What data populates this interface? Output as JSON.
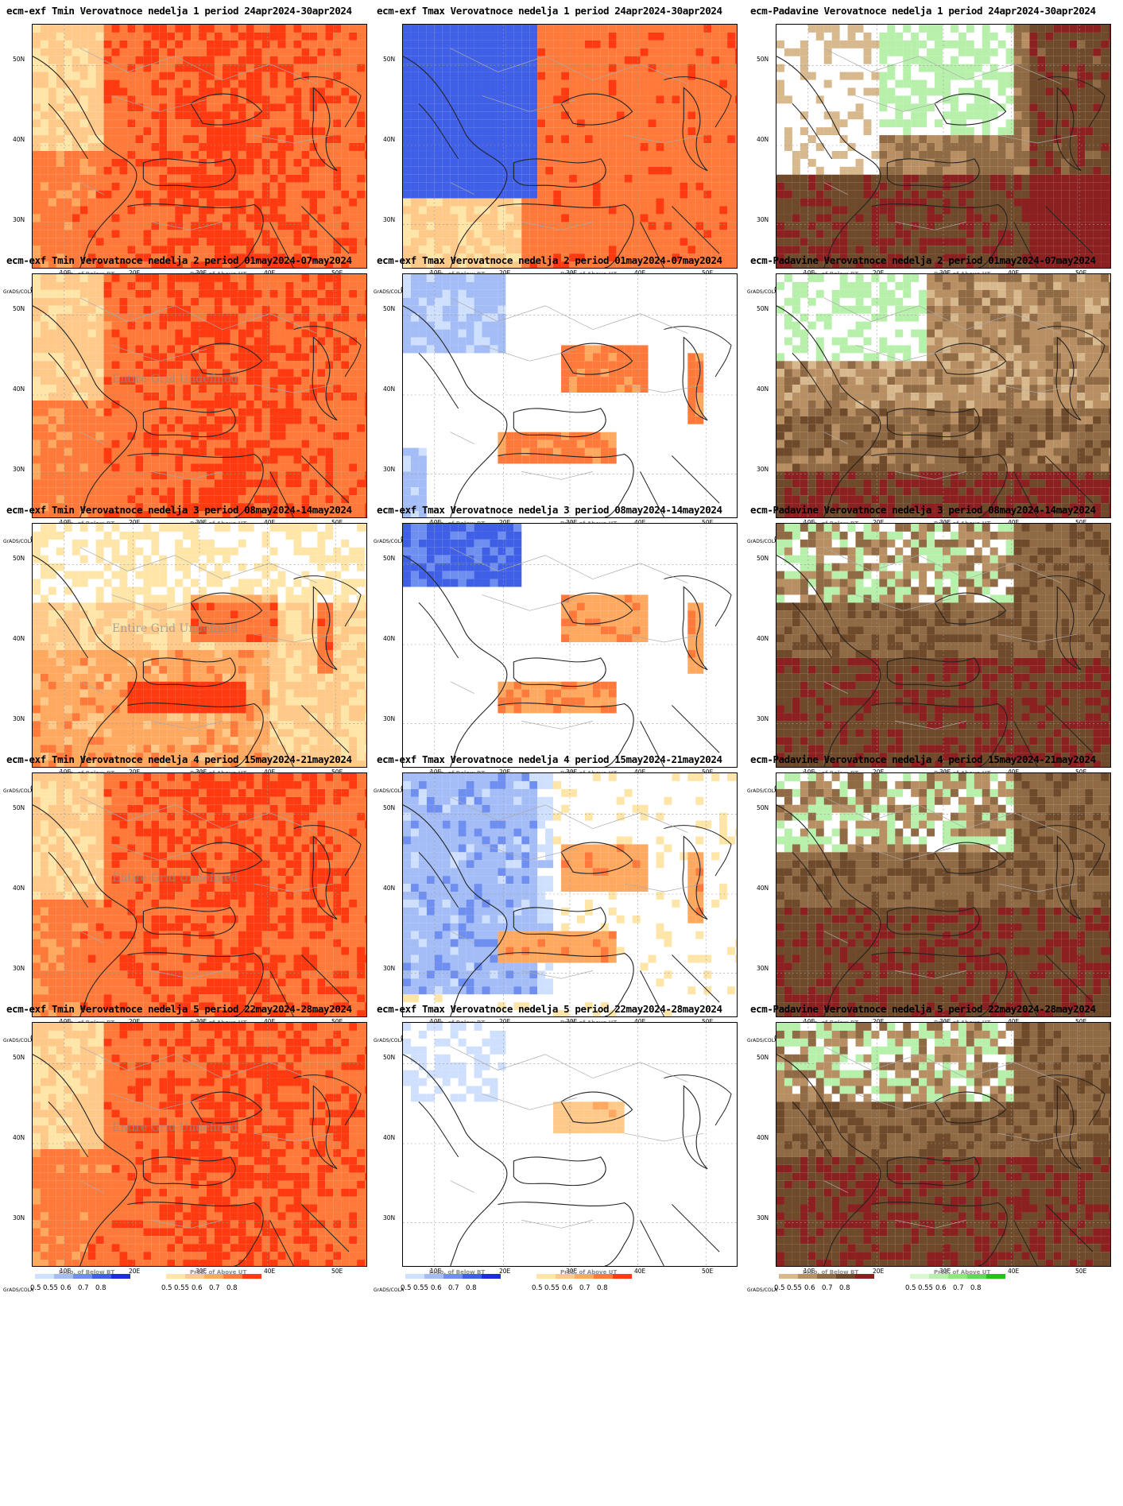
{
  "figure": {
    "y_ticks": [
      "50N",
      "40N",
      "30N"
    ],
    "x_ticks": [
      "10E",
      "20E",
      "30E",
      "40E",
      "50E"
    ],
    "grads_label": "GrADS/COLA",
    "colorbar_values": [
      "0.5",
      "0.55",
      "0.6",
      "0.7",
      "0.8"
    ],
    "colors": {
      "temp_below": [
        "#cfe0ff",
        "#a4bdf7",
        "#6f8ff0",
        "#3f5fe6",
        "#1a2ee0"
      ],
      "temp_above": [
        "#ffe6a8",
        "#ffc98a",
        "#ffa860",
        "#ff7a3a",
        "#ff3a10"
      ],
      "precip_below": [
        "#d8b98e",
        "#b88f63",
        "#8f6a45",
        "#6e4a2a",
        "#8b2020"
      ],
      "precip_above": [
        "#d6f7cf",
        "#b7f0aa",
        "#8fe87e",
        "#5fdc4f",
        "#22c316"
      ]
    }
  },
  "panels": [
    {
      "title": "ecm-exf Tmin Verovatnoce nedelja 1 period 24apr2024-30apr2024",
      "kind": "temp",
      "below_label": "Prob. of Below BT",
      "above_label": "Prob. of Above UT",
      "regime": "hot",
      "overlay": ""
    },
    {
      "title": "ecm-exf Tmax Verovatnoce nedelja 1 period 24apr2024-30apr2024",
      "kind": "temp",
      "below_label": "Prob. of Below BT",
      "above_label": "Prob. of Above UT",
      "regime": "split-cold",
      "overlay": ""
    },
    {
      "title": "ecm-Padavine Verovatnoce nedelja 1 period 24apr2024-30apr2024",
      "kind": "precip",
      "below_label": "Prob. of Below BT",
      "above_label": "Prob. of Above UT",
      "regime": "dry",
      "overlay": ""
    },
    {
      "title": "ecm-exf Tmin Verovatnoce nedelja 2 period 01may2024-07may2024",
      "kind": "temp",
      "below_label": "Prob. of Below BT",
      "above_label": "Prob. of Above UT",
      "regime": "hot",
      "overlay": "Entire Grid Undefined"
    },
    {
      "title": "ecm-exf Tmax Verovatnoce nedelja 2 period 01may2024-07may2024",
      "kind": "temp",
      "below_label": "Prob. of Below BT",
      "above_label": "Prob. of Above UT",
      "regime": "sea-warm",
      "overlay": ""
    },
    {
      "title": "ecm-Padavine Verovatnoce nedelja 2 period 01may2024-07may2024",
      "kind": "precip",
      "below_label": "Prob. of Below BT",
      "above_label": "Prob. of Above UT",
      "regime": "mixed",
      "overlay": ""
    },
    {
      "title": "ecm-exf Tmin Verovatnoce nedelja 3 period 08may2024-14may2024",
      "kind": "temp",
      "below_label": "Prob. of Below BT",
      "above_label": "Prob. of Above UT",
      "regime": "warm",
      "overlay": "Entire Grid Undefined"
    },
    {
      "title": "ecm-exf Tmax Verovatnoce nedelja 3 period 08may2024-14may2024",
      "kind": "temp",
      "below_label": "Prob. of Below BT",
      "above_label": "Prob. of Above UT",
      "regime": "sea-warm-nw-cold",
      "overlay": ""
    },
    {
      "title": "ecm-Padavine Verovatnoce nedelja 3 period 08may2024-14may2024",
      "kind": "precip",
      "below_label": "Prob. of Below BT",
      "above_label": "Prob. of Above UT",
      "regime": "dry-south",
      "overlay": ""
    },
    {
      "title": "ecm-exf Tmin Verovatnoce nedelja 4 period 15may2024-21may2024",
      "kind": "temp",
      "below_label": "Prob. of Below BT",
      "above_label": "Prob. of Above UT",
      "regime": "hot",
      "overlay": "Entire Grid Undefined"
    },
    {
      "title": "ecm-exf Tmax Verovatnoce nedelja 4 period 15may2024-21may2024",
      "kind": "temp",
      "below_label": "Prob. of Below BT",
      "above_label": "Prob. of Above UT",
      "regime": "west-cold",
      "overlay": ""
    },
    {
      "title": "ecm-Padavine Verovatnoce nedelja 4 period 15may2024-21may2024",
      "kind": "precip",
      "below_label": "Prob. of Below BT",
      "above_label": "Prob. of Above UT",
      "regime": "dry-south",
      "overlay": ""
    },
    {
      "title": "ecm-exf Tmin Verovatnoce nedelja 5 period 22may2024-28may2024",
      "kind": "temp",
      "below_label": "Prob. of Below BT",
      "above_label": "Prob. of Above UT",
      "regime": "hot",
      "overlay": "Entire Grid Undefined"
    },
    {
      "title": "ecm-exf Tmax Verovatnoce nedelja 5 period 22may2024-28may2024",
      "kind": "temp",
      "below_label": "Prob. of Below BT",
      "above_label": "Prob. of Above UT",
      "regime": "mild",
      "overlay": ""
    },
    {
      "title": "ecm-Padavine Verovatnoce nedelja 5 period 22may2024-28may2024",
      "kind": "precip",
      "below_label": "Prob. of Below BT",
      "above_label": "Prob. of Above UT",
      "regime": "dry-south",
      "overlay": ""
    }
  ]
}
